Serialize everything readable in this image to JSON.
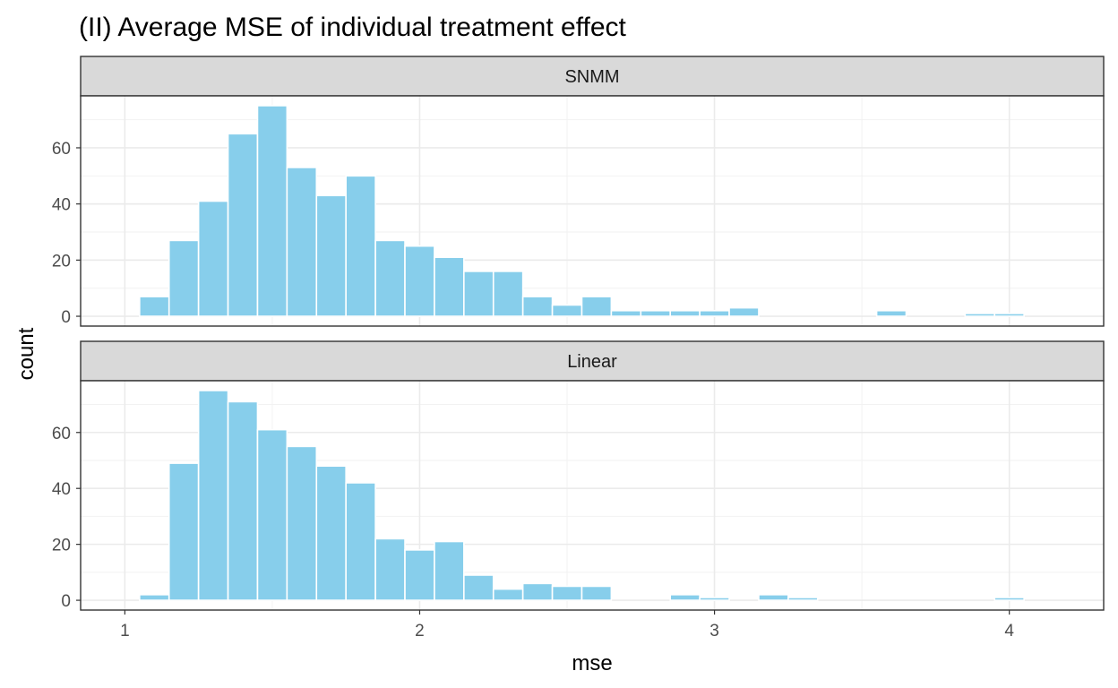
{
  "title": "(II) Average MSE of individual treatment effect",
  "chart_data": {
    "type": "bar",
    "title": "(II) Average MSE of individual treatment effect",
    "xlabel": "mse",
    "ylabel": "count",
    "bar_color": "#87ceeb",
    "bar_outline": "#ffffff",
    "strip_color": "#d9d9d9",
    "grid": true,
    "xlim": [
      0.85,
      4.32
    ],
    "ylim": [
      -3.5,
      78.5
    ],
    "x_ticks": [
      1,
      2,
      3,
      4
    ],
    "x_tick_labels": [
      "1",
      "2",
      "3",
      "4"
    ],
    "y_ticks": [
      0,
      20,
      40,
      60
    ],
    "y_tick_labels": [
      "0",
      "20",
      "40",
      "60"
    ],
    "bin_width": 0.1,
    "bin_start": 0.95,
    "panels": [
      {
        "name": "SNMM",
        "counts": [
          0,
          7,
          27,
          41,
          65,
          75,
          53,
          43,
          50,
          27,
          25,
          21,
          16,
          16,
          7,
          4,
          7,
          2,
          2,
          2,
          2,
          3,
          0,
          0,
          0,
          0,
          2,
          0,
          0,
          1,
          1,
          0
        ]
      },
      {
        "name": "Linear",
        "counts": [
          0,
          2,
          49,
          75,
          71,
          61,
          55,
          48,
          42,
          22,
          18,
          21,
          9,
          4,
          6,
          5,
          5,
          0,
          0,
          2,
          1,
          0,
          2,
          1,
          0,
          0,
          0,
          0,
          0,
          0,
          1,
          0
        ]
      }
    ]
  }
}
